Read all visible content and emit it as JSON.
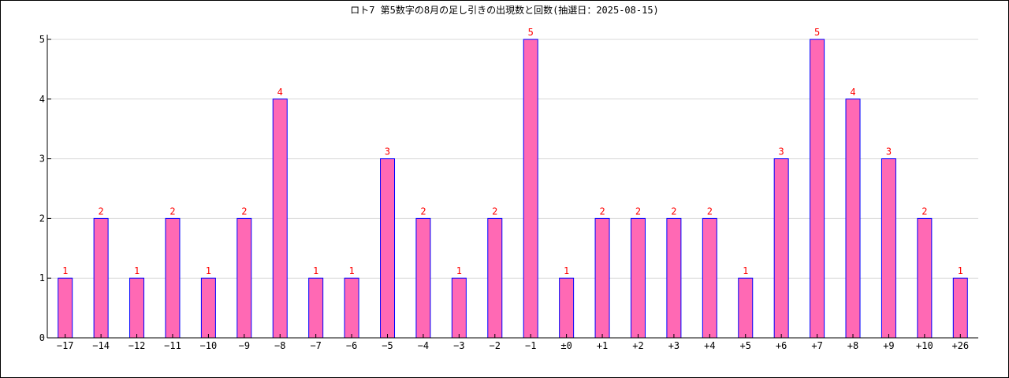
{
  "chart_data": {
    "type": "bar",
    "title": "ロト7 第5数字の8月の足し引きの出現数と回数(抽選日：2025-08-15)",
    "xlabel": "",
    "ylabel": "",
    "categories": [
      "−17",
      "−14",
      "−12",
      "−11",
      "−10",
      "−9",
      "−8",
      "−7",
      "−6",
      "−5",
      "−4",
      "−3",
      "−2",
      "−1",
      "±0",
      "+1",
      "+2",
      "+3",
      "+4",
      "+5",
      "+6",
      "+7",
      "+8",
      "+9",
      "+10",
      "+26"
    ],
    "values": [
      1,
      2,
      1,
      2,
      1,
      2,
      4,
      1,
      1,
      3,
      2,
      1,
      2,
      5,
      1,
      2,
      2,
      2,
      2,
      1,
      3,
      5,
      4,
      3,
      2,
      1
    ],
    "ylim": [
      0,
      5
    ],
    "yticks": [
      "0",
      "1",
      "2",
      "3",
      "4",
      "5"
    ],
    "grid": true,
    "legend": "none",
    "colors": {
      "bar_fill": "#ff69b4",
      "bar_stroke": "#0000ff",
      "data_label": "#ff0000",
      "grid": "#d9d9d9",
      "axis": "#000000"
    }
  }
}
